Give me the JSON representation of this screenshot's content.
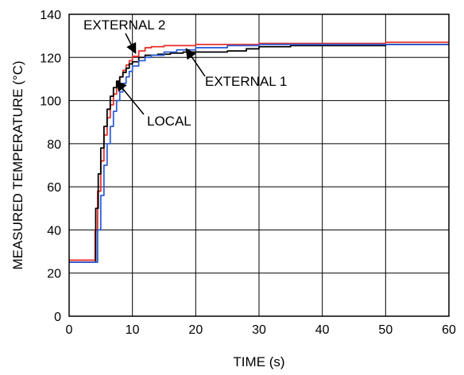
{
  "chart_data": {
    "type": "line",
    "xlabel": "TIME (s)",
    "ylabel": "MEASURED TEMPERATURE (°C)",
    "xlim": [
      0,
      60
    ],
    "ylim": [
      0,
      140
    ],
    "x_ticks": [
      0,
      10,
      20,
      30,
      40,
      50,
      60
    ],
    "y_ticks": [
      0,
      20,
      40,
      60,
      80,
      100,
      120,
      140
    ],
    "grid": true,
    "series": [
      {
        "name": "EXTERNAL 2",
        "color": "#e8302a",
        "points": [
          [
            0,
            26
          ],
          [
            3.8,
            26
          ],
          [
            4.1,
            40
          ],
          [
            4.5,
            58
          ],
          [
            5,
            72
          ],
          [
            5.5,
            84
          ],
          [
            6,
            92
          ],
          [
            6.5,
            98
          ],
          [
            7,
            103
          ],
          [
            7.5,
            107
          ],
          [
            8,
            111
          ],
          [
            8.5,
            114
          ],
          [
            9,
            116.5
          ],
          [
            9.5,
            118.5
          ],
          [
            10,
            120.5
          ],
          [
            11,
            123
          ],
          [
            12,
            124.5
          ],
          [
            13,
            125
          ],
          [
            15,
            125.5
          ],
          [
            20,
            126
          ],
          [
            25,
            126
          ],
          [
            30,
            126.5
          ],
          [
            40,
            126.5
          ],
          [
            50,
            127
          ],
          [
            60,
            127
          ]
        ]
      },
      {
        "name": "LOCAL",
        "color": "#000000",
        "points": [
          [
            0,
            25
          ],
          [
            3.8,
            25
          ],
          [
            4.2,
            50
          ],
          [
            4.6,
            66
          ],
          [
            5,
            78
          ],
          [
            5.5,
            88
          ],
          [
            6,
            96
          ],
          [
            6.5,
            102
          ],
          [
            7,
            106
          ],
          [
            7.5,
            109
          ],
          [
            8,
            111
          ],
          [
            8.5,
            113
          ],
          [
            9,
            115
          ],
          [
            9.5,
            117
          ],
          [
            10,
            118
          ],
          [
            11,
            120
          ],
          [
            12,
            121
          ],
          [
            14,
            121.5
          ],
          [
            16,
            122
          ],
          [
            18,
            122.5
          ],
          [
            20,
            122.5
          ],
          [
            25,
            123
          ],
          [
            28,
            124
          ],
          [
            30,
            125
          ],
          [
            35,
            125.5
          ],
          [
            40,
            125.5
          ],
          [
            50,
            126
          ],
          [
            60,
            126
          ]
        ]
      },
      {
        "name": "EXTERNAL 1",
        "color": "#2f5ed8",
        "points": [
          [
            0,
            25
          ],
          [
            4.2,
            25
          ],
          [
            4.5,
            40
          ],
          [
            5,
            56
          ],
          [
            5.5,
            70
          ],
          [
            6,
            80
          ],
          [
            6.5,
            88
          ],
          [
            7,
            95
          ],
          [
            7.5,
            100
          ],
          [
            8,
            104
          ],
          [
            8.5,
            108
          ],
          [
            9,
            111
          ],
          [
            9.5,
            113.5
          ],
          [
            10,
            116
          ],
          [
            11,
            118.5
          ],
          [
            12,
            120
          ],
          [
            13,
            121
          ],
          [
            15,
            122.5
          ],
          [
            17,
            123.5
          ],
          [
            20,
            124.5
          ],
          [
            25,
            125.5
          ],
          [
            30,
            126
          ],
          [
            40,
            126
          ],
          [
            50,
            126
          ],
          [
            60,
            126
          ]
        ]
      }
    ],
    "annotations": [
      {
        "text": "EXTERNAL 2",
        "points_to": [
          10.5,
          122
        ]
      },
      {
        "text": "EXTERNAL 1",
        "points_to": [
          18.5,
          124
        ]
      },
      {
        "text": "LOCAL",
        "points_to": [
          7.5,
          109
        ]
      }
    ]
  }
}
